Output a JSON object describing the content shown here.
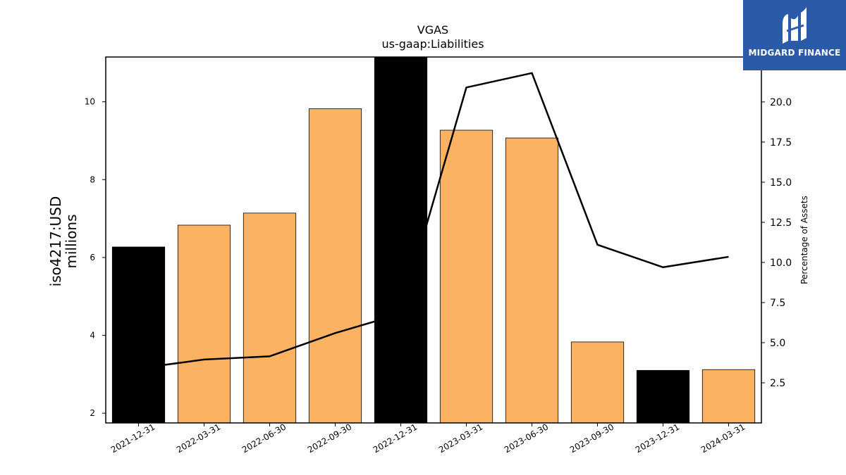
{
  "logo": {
    "text": "MIDGARD FINANCE",
    "icon": "midgard-logo-icon",
    "bg_color": "#2a5aa8"
  },
  "chart_data": {
    "type": "bar",
    "title": "VGAS",
    "subtitle": "us-gaap:Liabilities",
    "ylabel": [
      "iso4217:USD",
      "millions"
    ],
    "y2label": "Percentage of Assets",
    "categories": [
      "2021-12-31",
      "2022-03-31",
      "2022-06-30",
      "2022-09-30",
      "2022-12-31",
      "2023-03-31",
      "2023-06-30",
      "2023-09-30",
      "2023-12-31",
      "2024-03-31"
    ],
    "bar_values": [
      6.27,
      6.83,
      7.14,
      9.82,
      11.17,
      9.27,
      9.07,
      3.83,
      3.1,
      3.12
    ],
    "bar_colors": [
      "#000000",
      "#fbb363",
      "#fbb363",
      "#fbb363",
      "#000000",
      "#fbb363",
      "#fbb363",
      "#fbb363",
      "#000000",
      "#fbb363"
    ],
    "line_values": [
      3.4,
      3.95,
      4.15,
      5.6,
      6.8,
      20.9,
      21.8,
      11.1,
      9.7,
      10.35
    ],
    "line_color": "#000000",
    "ylim": [
      1.75,
      11.15
    ],
    "y2lim": [
      0,
      22.8
    ],
    "yticks": [
      2,
      4,
      6,
      8,
      10
    ],
    "y2ticks": [
      2.5,
      5.0,
      7.5,
      10.0,
      12.5,
      15.0,
      17.5,
      20.0
    ],
    "ytick_labels": [
      "2",
      "4",
      "6",
      "8",
      "10"
    ],
    "y2tick_labels": [
      "2.5",
      "5.0",
      "7.5",
      "10.0",
      "12.5",
      "15.0",
      "17.5",
      "20.0"
    ],
    "grid": false
  }
}
